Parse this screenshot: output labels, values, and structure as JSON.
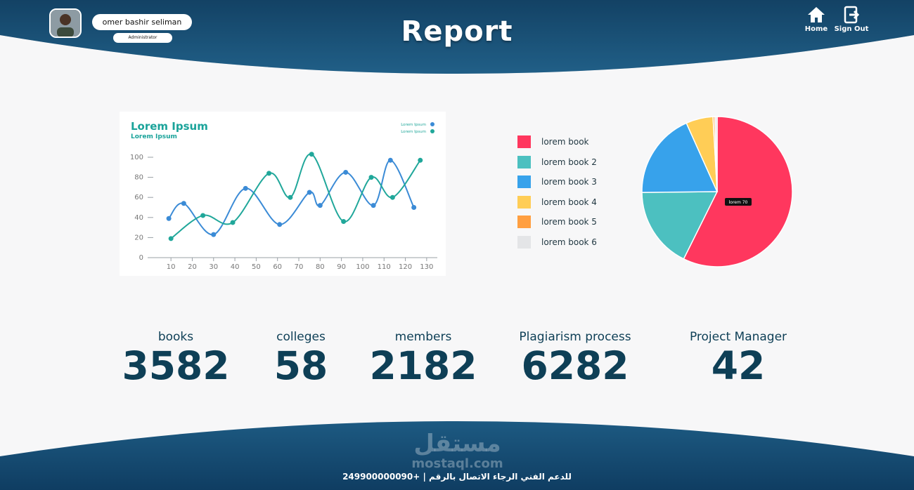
{
  "header": {
    "title": "Report",
    "user": {
      "name": "omer bashir seliman",
      "role": "Administrator"
    },
    "nav": [
      {
        "label": "Home",
        "icon": "home-icon"
      },
      {
        "label": "Sign Out",
        "icon": "sign-out-icon"
      }
    ],
    "colors": {
      "band": "#15476a",
      "band_dark": "#0b3354"
    }
  },
  "line_chart": {
    "title": "Lorem Ipsum",
    "subtitle": "Lorem Ipsum",
    "legend": [
      "Lorem Ipsum",
      "Lorem Ipsum"
    ]
  },
  "chart_data": [
    {
      "type": "line",
      "title": "Lorem Ipsum",
      "subtitle": "Lorem Ipsum",
      "xlim": [
        5,
        135
      ],
      "ylim": [
        0,
        100
      ],
      "x_ticks": [
        10,
        20,
        30,
        40,
        50,
        60,
        70,
        80,
        90,
        100,
        110,
        120,
        130
      ],
      "y_ticks": [
        0,
        20,
        40,
        60,
        80,
        100
      ],
      "grid": false,
      "legend_position": "top-right",
      "series": [
        {
          "name": "Lorem Ipsum",
          "color": "#3b8bd6",
          "x": [
            9,
            16,
            30,
            45,
            61,
            75,
            80,
            92,
            105,
            113,
            124
          ],
          "y": [
            39,
            54,
            23,
            69,
            33,
            65,
            52,
            85,
            52,
            97,
            50
          ]
        },
        {
          "name": "Lorem Ipsum",
          "color": "#20a79a",
          "x": [
            10,
            25,
            39,
            56,
            66,
            76,
            91,
            104,
            114,
            127
          ],
          "y": [
            19,
            42,
            35,
            84,
            60,
            103,
            36,
            80,
            60,
            97
          ]
        }
      ]
    },
    {
      "type": "pie",
      "legend_position": "left",
      "tooltip_text": "lorem 70",
      "slices": [
        {
          "label": "lorem book",
          "value": 59,
          "color": "#ff375e"
        },
        {
          "label": "lorem book 2",
          "value": 18,
          "color": "#4cc0c0"
        },
        {
          "label": "lorem book  3",
          "value": 19,
          "color": "#37a2eb"
        },
        {
          "label": "lorem book  4",
          "value": 6,
          "color": "#ffcd56"
        },
        {
          "label": "lorem book  5",
          "value": 0.4,
          "color": "#ff9f40"
        },
        {
          "label": "lorem book  6",
          "value": 0.5,
          "color": "#e4e5e7"
        }
      ]
    }
  ],
  "stats": [
    {
      "label": "books",
      "value": "3582"
    },
    {
      "label": "colleges",
      "value": "58"
    },
    {
      "label": "members",
      "value": "2182"
    },
    {
      "label": "Plagiarism process",
      "value": "6282"
    },
    {
      "label": "Project Manager",
      "value": "42"
    }
  ],
  "footer": {
    "support_text": "للدعم الفني الرجاء الاتصال بالرقم  |  +249900000090",
    "watermark_ar": "مستقل",
    "watermark_en": "mostaql.com"
  }
}
